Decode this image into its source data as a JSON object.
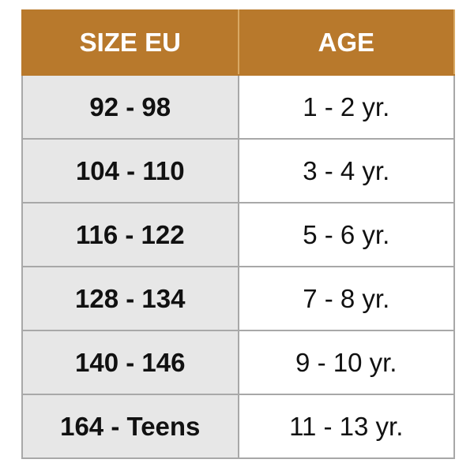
{
  "table": {
    "header": [
      "SIZE EU",
      "AGE"
    ],
    "rows": [
      [
        "92 - 98",
        "1 - 2 yr."
      ],
      [
        "104 - 110",
        "3 - 4 yr."
      ],
      [
        "116 - 122",
        "5 - 6 yr."
      ],
      [
        "128 - 134",
        "7 - 8 yr."
      ],
      [
        "140 - 146",
        "9 - 10 yr."
      ],
      [
        "164 - Teens",
        "11 - 13 yr."
      ]
    ]
  }
}
